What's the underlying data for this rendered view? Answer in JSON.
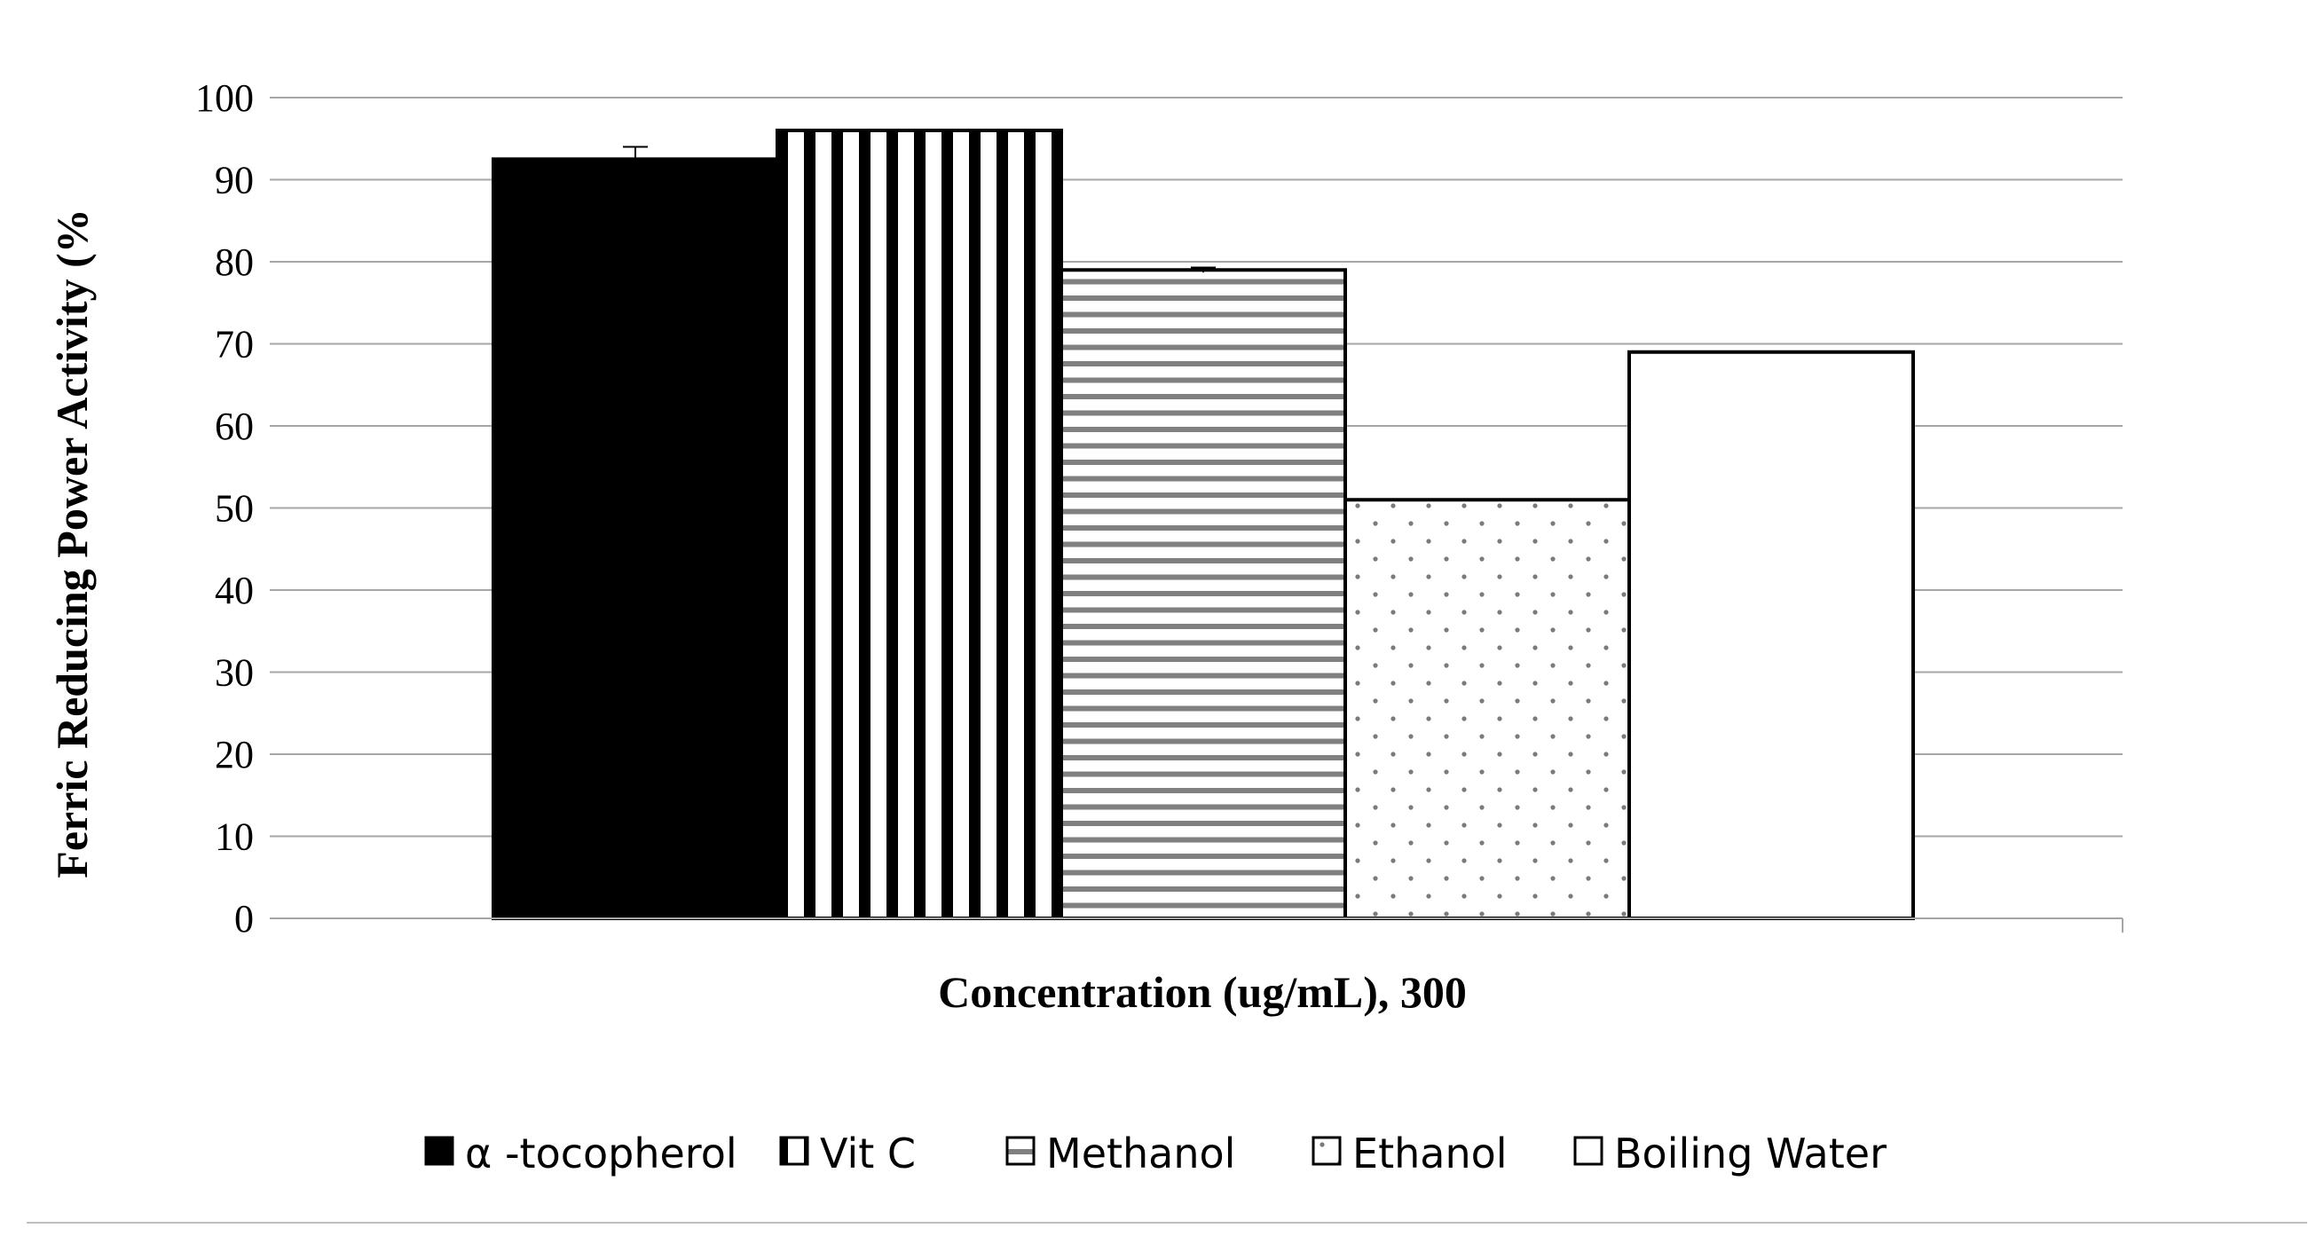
{
  "chart_data": {
    "type": "bar",
    "categories": [
      "300"
    ],
    "xlabel": "Concentration (ug/mL), 300",
    "ylabel": "Ferric Reducing Power Activity (%",
    "ylim": [
      0,
      100
    ],
    "yticks": [
      0,
      10,
      20,
      30,
      40,
      50,
      60,
      70,
      80,
      90,
      100
    ],
    "grid": true,
    "legend_position": "bottom",
    "series": [
      {
        "name": "α -tocopherol",
        "values": [
          92.5
        ],
        "error": [
          1.5
        ],
        "pattern": "solid-black"
      },
      {
        "name": "Vit C",
        "values": [
          96
        ],
        "error": [
          0
        ],
        "pattern": "vertical-stripes"
      },
      {
        "name": "Methanol",
        "values": [
          79
        ],
        "error": [
          0.3
        ],
        "pattern": "horizontal-stripes"
      },
      {
        "name": "Ethanol",
        "values": [
          51
        ],
        "error": [
          0
        ],
        "pattern": "dots"
      },
      {
        "name": "Boiling Water",
        "values": [
          69
        ],
        "error": [
          0
        ],
        "pattern": "white"
      }
    ],
    "colors": {
      "bar_stroke": "#000000",
      "stripe_gray": "#808080",
      "dot_gray": "#7a7a7a",
      "grid": "#a6a6a6",
      "frame": "#bfbfbf"
    }
  }
}
